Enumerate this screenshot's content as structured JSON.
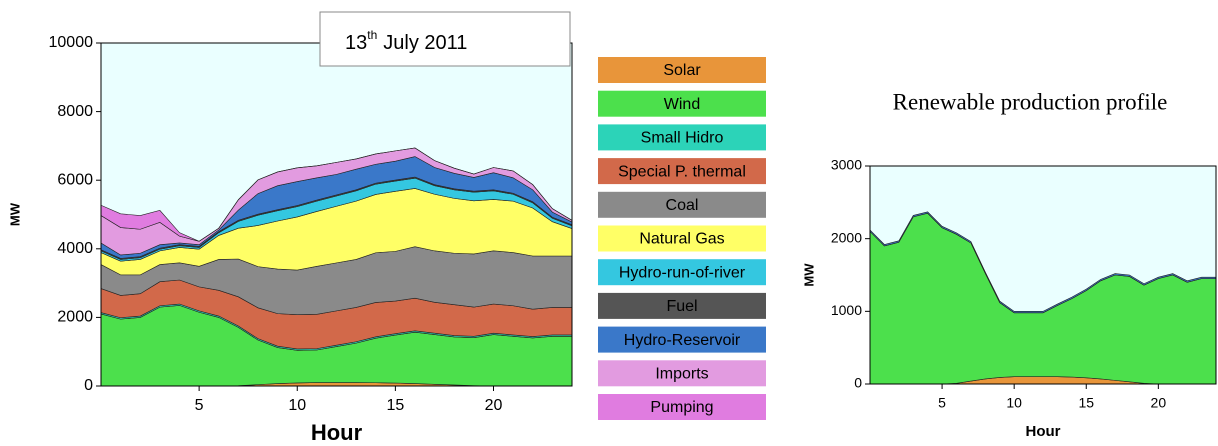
{
  "chart_data": [
    {
      "type": "stacked-area",
      "title": {
        "number": "13",
        "ordinal": "th",
        "text": "July 2011"
      },
      "xlabel": "Hour",
      "ylabel": "MW",
      "x": [
        0,
        1,
        2,
        3,
        4,
        5,
        6,
        7,
        8,
        9,
        10,
        11,
        12,
        13,
        14,
        15,
        16,
        17,
        18,
        19,
        20,
        21,
        22,
        23,
        24
      ],
      "xlim": [
        0,
        24
      ],
      "xticks": [
        5,
        10,
        15,
        20
      ],
      "ylim": [
        0,
        10000
      ],
      "yticks": [
        0,
        2000,
        4000,
        6000,
        8000,
        10000
      ],
      "background": "#eaffff",
      "legend": "right",
      "series": [
        {
          "name": "Solar",
          "color": "#e8953a",
          "values": [
            0,
            0,
            0,
            0,
            0,
            0,
            0,
            10,
            40,
            70,
            90,
            100,
            100,
            100,
            95,
            85,
            70,
            50,
            30,
            10,
            0,
            0,
            0,
            0,
            0
          ]
        },
        {
          "name": "Wind",
          "color": "#4ce04c",
          "values": [
            2100,
            1950,
            2000,
            2300,
            2350,
            2150,
            2000,
            1700,
            1300,
            1050,
            950,
            950,
            1050,
            1150,
            1300,
            1400,
            1500,
            1450,
            1400,
            1400,
            1500,
            1450,
            1400,
            1450,
            1450
          ]
        },
        {
          "name": "Small Hidro",
          "color": "#2cd3b8",
          "values": [
            40,
            40,
            40,
            40,
            40,
            40,
            40,
            40,
            40,
            40,
            40,
            40,
            40,
            40,
            40,
            40,
            40,
            40,
            40,
            40,
            40,
            40,
            40,
            40,
            40
          ]
        },
        {
          "name": "Special P. thermal",
          "color": "#d2694a",
          "values": [
            700,
            650,
            650,
            700,
            700,
            700,
            750,
            850,
            900,
            950,
            1000,
            1000,
            1000,
            1000,
            1000,
            950,
            950,
            900,
            900,
            850,
            850,
            850,
            800,
            800,
            800
          ]
        },
        {
          "name": "Coal",
          "color": "#8a8a8a",
          "values": [
            700,
            600,
            550,
            500,
            500,
            600,
            900,
            1100,
            1200,
            1300,
            1300,
            1400,
            1400,
            1400,
            1450,
            1450,
            1500,
            1500,
            1500,
            1550,
            1550,
            1550,
            1550,
            1500,
            1500
          ]
        },
        {
          "name": "Natural Gas",
          "color": "#ffff66",
          "values": [
            350,
            400,
            450,
            400,
            450,
            500,
            700,
            900,
            1200,
            1400,
            1550,
            1600,
            1650,
            1700,
            1700,
            1750,
            1700,
            1650,
            1600,
            1550,
            1500,
            1500,
            1400,
            1000,
            800
          ]
        },
        {
          "name": "Hydro-run-of-river",
          "color": "#34c7e0",
          "values": [
            50,
            50,
            50,
            50,
            50,
            50,
            80,
            200,
            300,
            300,
            300,
            300,
            300,
            300,
            300,
            300,
            300,
            250,
            250,
            250,
            250,
            200,
            150,
            100,
            80
          ]
        },
        {
          "name": "Fuel",
          "color": "#555555",
          "values": [
            30,
            30,
            30,
            30,
            30,
            30,
            30,
            30,
            30,
            30,
            30,
            30,
            30,
            30,
            30,
            30,
            30,
            30,
            30,
            30,
            30,
            30,
            30,
            30,
            30
          ]
        },
        {
          "name": "Hydro-Reservoir",
          "color": "#3a78c9",
          "values": [
            200,
            100,
            100,
            100,
            50,
            50,
            50,
            300,
            600,
            700,
            700,
            650,
            600,
            600,
            550,
            550,
            600,
            500,
            450,
            400,
            500,
            450,
            350,
            150,
            80
          ]
        },
        {
          "name": "Imports",
          "color": "#e29be0",
          "values": [
            800,
            800,
            700,
            650,
            200,
            100,
            50,
            300,
            400,
            400,
            400,
            350,
            350,
            300,
            300,
            300,
            250,
            200,
            150,
            100,
            150,
            200,
            150,
            100,
            50
          ]
        },
        {
          "name": "Pumping",
          "color": "#e07ce0",
          "values": [
            300,
            400,
            400,
            350,
            100,
            0,
            0,
            0,
            0,
            0,
            0,
            0,
            0,
            0,
            0,
            0,
            0,
            0,
            0,
            0,
            0,
            0,
            0,
            0,
            0
          ]
        }
      ]
    },
    {
      "type": "stacked-area",
      "title": "Renewable production profile",
      "xlabel": "Hour",
      "ylabel": "MW",
      "x": [
        0,
        1,
        2,
        3,
        4,
        5,
        6,
        7,
        8,
        9,
        10,
        11,
        12,
        13,
        14,
        15,
        16,
        17,
        18,
        19,
        20,
        21,
        22,
        23,
        24
      ],
      "xlim": [
        0,
        24
      ],
      "xticks": [
        5,
        10,
        15,
        20
      ],
      "ylim": [
        0,
        3000
      ],
      "yticks": [
        0,
        1000,
        2000,
        3000
      ],
      "background": "#eaffff",
      "series": [
        {
          "color": "#e8953a",
          "values": [
            0,
            0,
            0,
            0,
            0,
            0,
            10,
            40,
            70,
            90,
            100,
            100,
            100,
            100,
            95,
            85,
            70,
            50,
            30,
            10,
            0,
            0,
            0,
            0,
            0
          ]
        },
        {
          "color": "#4ce04c",
          "values": [
            2100,
            1900,
            1950,
            2300,
            2350,
            2150,
            2050,
            1900,
            1450,
            1030,
            880,
            880,
            880,
            980,
            1080,
            1200,
            1350,
            1450,
            1450,
            1350,
            1450,
            1500,
            1400,
            1450,
            1450
          ]
        },
        {
          "color": "#3a78c9",
          "values": [
            20,
            20,
            20,
            20,
            20,
            20,
            20,
            20,
            20,
            20,
            20,
            20,
            20,
            20,
            20,
            20,
            20,
            20,
            20,
            20,
            20,
            20,
            20,
            20,
            20
          ]
        }
      ]
    }
  ]
}
